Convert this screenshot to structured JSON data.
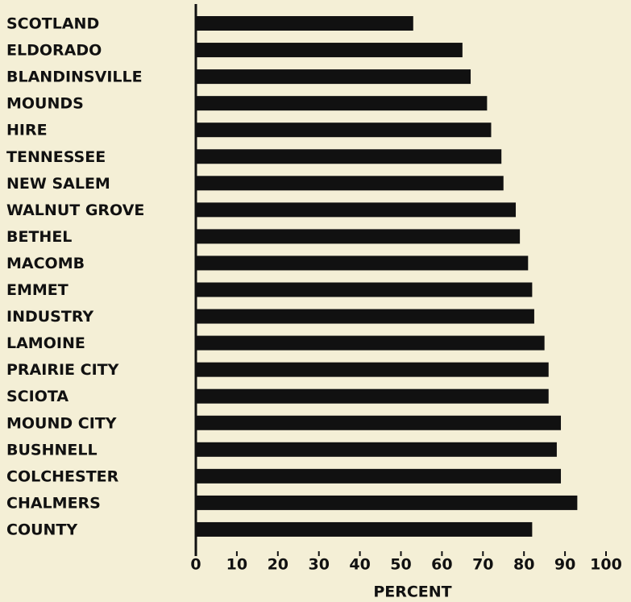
{
  "chart_data": {
    "type": "bar",
    "orientation": "horizontal",
    "categories": [
      "SCOTLAND",
      "ELDORADO",
      "BLANDINSVILLE",
      "MOUNDS",
      "HIRE",
      "TENNESSEE",
      "NEW SALEM",
      "WALNUT GROVE",
      "BETHEL",
      "MACOMB",
      "EMMET",
      "INDUSTRY",
      "LAMOINE",
      "PRAIRIE CITY",
      "SCIOTA",
      "MOUND CITY",
      "BUSHNELL",
      "COLCHESTER",
      "CHALMERS",
      "COUNTY"
    ],
    "values": [
      53,
      65,
      67,
      71,
      72,
      74.5,
      75,
      78,
      79,
      81,
      82,
      82.5,
      85,
      86,
      86,
      89,
      88,
      89,
      93,
      82
    ],
    "color": "#111111",
    "x_label": "PERCENT",
    "xlim": [
      0,
      100
    ],
    "xticks": [
      0,
      10,
      20,
      30,
      40,
      50,
      60,
      70,
      80,
      90,
      100
    ]
  }
}
